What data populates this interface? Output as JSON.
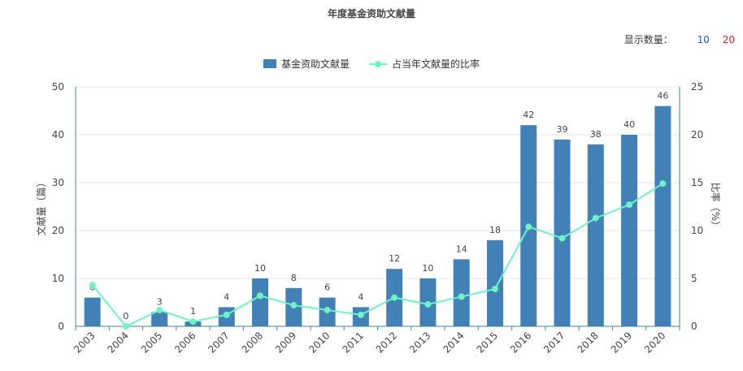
{
  "title": "年度基金资助文献量",
  "display_count": {
    "label": "显示数量：",
    "options": [
      "10",
      "20"
    ],
    "option_colors": [
      "#1a5bd8",
      "#e0201b"
    ]
  },
  "colors": {
    "bar": "#4281b6",
    "line": "#6ef2c8",
    "axis": "#3a8aa0",
    "grid": "#e4e4e4",
    "text": "#444444"
  },
  "chart_data": {
    "type": "bar",
    "title": "年度基金资助文献量",
    "categories": [
      "2003",
      "2004",
      "2005",
      "2006",
      "2007",
      "2008",
      "2009",
      "2010",
      "2011",
      "2012",
      "2013",
      "2014",
      "2015",
      "2016",
      "2017",
      "2018",
      "2019",
      "2020"
    ],
    "series": [
      {
        "name": "基金资助文献量",
        "type": "bar",
        "axis": "left",
        "values": [
          6,
          0,
          3,
          1,
          4,
          10,
          8,
          6,
          4,
          12,
          10,
          14,
          18,
          42,
          39,
          38,
          40,
          46
        ]
      },
      {
        "name": "占当年文献量的比率",
        "type": "line",
        "axis": "right",
        "values": [
          4.3,
          0,
          1.7,
          0.5,
          1.2,
          3.2,
          2.2,
          1.7,
          1.2,
          3.0,
          2.3,
          3.1,
          3.9,
          10.4,
          9.2,
          11.3,
          12.7,
          14.9
        ]
      }
    ],
    "ylabel": "文献量（篇）",
    "y2label": "比率（%）",
    "ylim": [
      0,
      50
    ],
    "y2lim": [
      0,
      25
    ],
    "yticks": [
      0,
      10,
      20,
      30,
      40,
      50
    ],
    "y2ticks": [
      0,
      5,
      10,
      15,
      20,
      25
    ],
    "grid": true,
    "legend_position": "top-center"
  }
}
